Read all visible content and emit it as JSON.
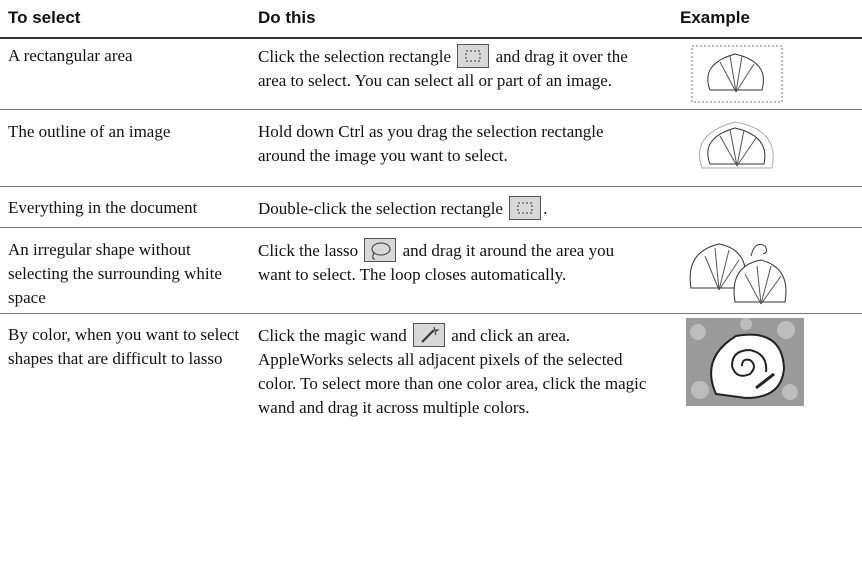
{
  "table": {
    "headers": [
      "To select",
      "Do this",
      "Example"
    ],
    "rows": [
      {
        "select": "A rectangular area",
        "do": [
          "Click the selection rectangle",
          "and drag it over the area to select. You can select all or part of an image."
        ]
      },
      {
        "select": "The outline of an image",
        "do": [
          "Hold down Ctrl as you drag the selection rectangle around the image you want to select."
        ]
      },
      {
        "select": "Everything in the document",
        "do": [
          "Double-click the selection rectangle",
          "."
        ]
      },
      {
        "select": "An irregular shape without selecting the surrounding white space",
        "do": [
          "Click the lasso",
          "and drag it around the area you want to select. The loop closes automatically."
        ]
      },
      {
        "select": "By color, when you want to select shapes that are difficult to lasso",
        "do": [
          "Click the magic wand",
          "and click an area. AppleWorks selects all adjacent pixels of the selected color. To select more than one color area, click the magic wand and drag it across multiple colors."
        ]
      }
    ]
  }
}
